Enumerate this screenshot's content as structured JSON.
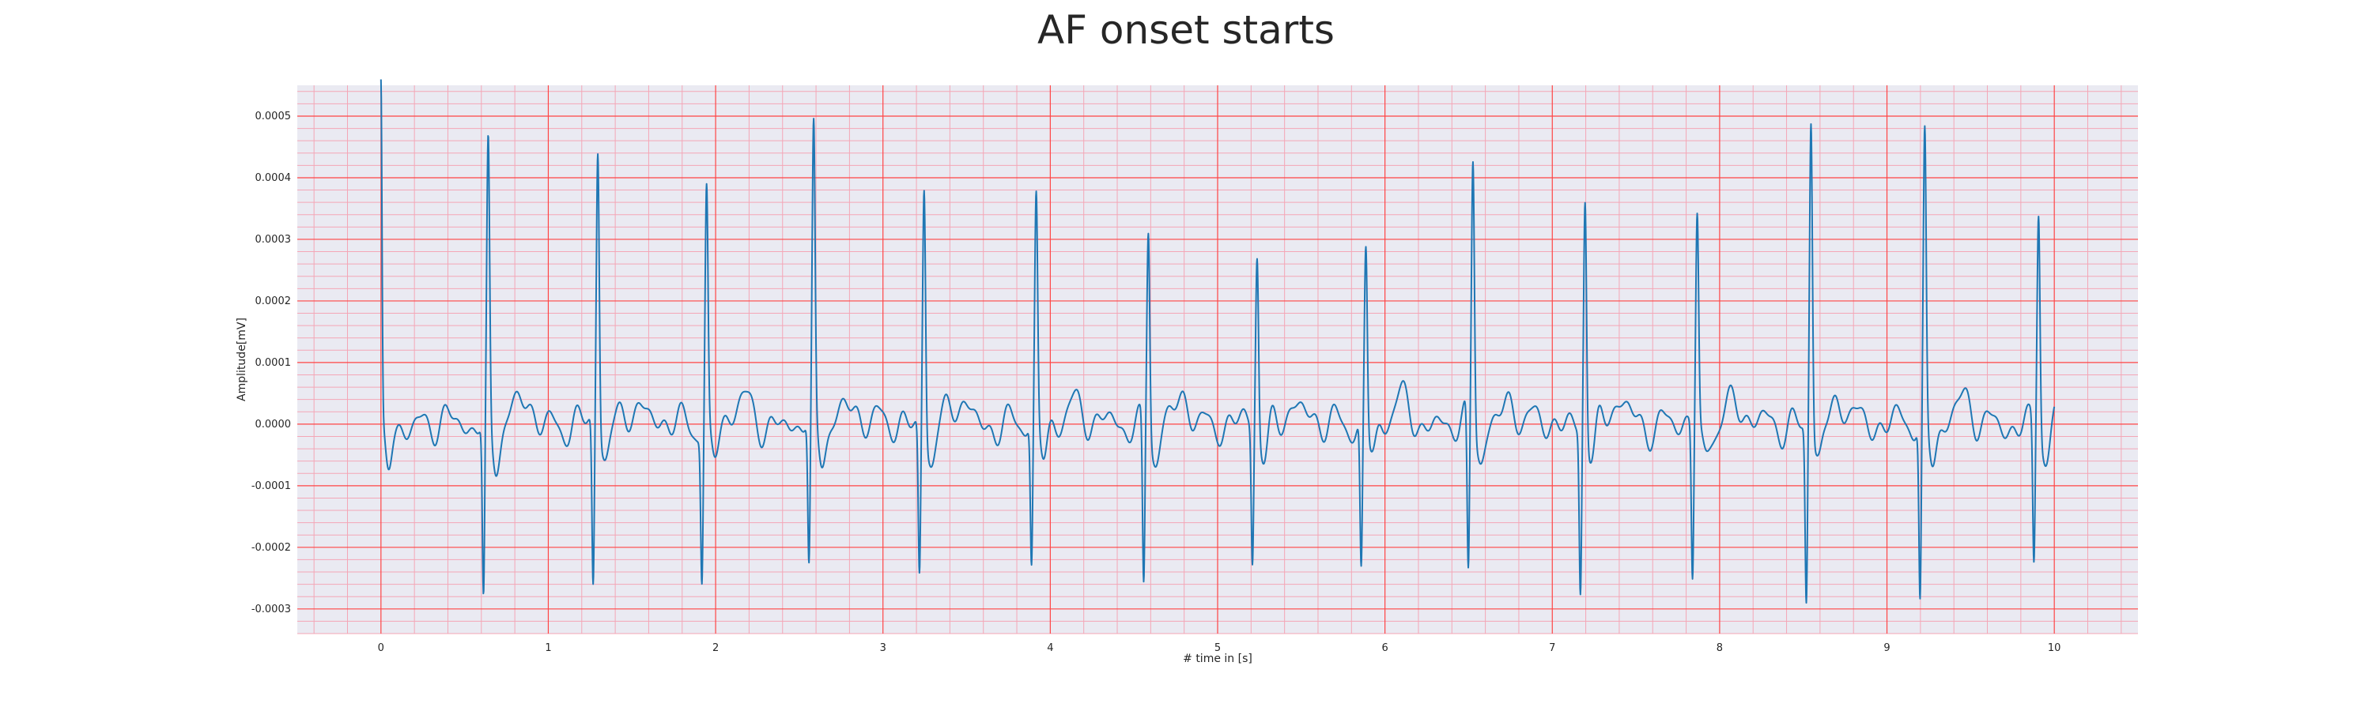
{
  "chart_data": {
    "type": "line",
    "title": "AF onset starts",
    "xlabel": "# time in [s]",
    "ylabel": "Amplitude[mV]",
    "xlim": [
      -0.5,
      10.5
    ],
    "ylim": [
      -0.00034,
      0.00055
    ],
    "x_ticks": [
      0,
      1,
      2,
      3,
      4,
      5,
      6,
      7,
      8,
      9,
      10
    ],
    "x_tick_labels": [
      "0",
      "1",
      "2",
      "3",
      "4",
      "5",
      "6",
      "7",
      "8",
      "9",
      "10"
    ],
    "y_ticks": [
      -0.0003,
      -0.0002,
      -0.0001,
      0.0,
      0.0001,
      0.0002,
      0.0003,
      0.0004,
      0.0005
    ],
    "y_tick_labels": [
      "-0.0003",
      "-0.0002",
      "-0.0001",
      "0.0000",
      "0.0001",
      "0.0002",
      "0.0003",
      "0.0004",
      "0.0005"
    ],
    "grid": true,
    "plot_background": "#eaeaf2",
    "major_grid_color": "#ff4444",
    "minor_grid_color": "#f4a6b6",
    "series": [
      {
        "color": "#1f77b4",
        "x_start": 0.0,
        "x_end": 10.0,
        "initial_value": 0.00048,
        "beats": [
          {
            "t": 0.635,
            "r": 0.00045,
            "s": -0.00029
          },
          {
            "t": 1.29,
            "r": 0.000455,
            "s": -0.00027
          },
          {
            "t": 1.94,
            "r": 0.000385,
            "s": -0.00024
          },
          {
            "t": 2.58,
            "r": 0.00046,
            "s": -0.000245
          },
          {
            "t": 3.24,
            "r": 0.000405,
            "s": -0.000245
          },
          {
            "t": 3.91,
            "r": 0.00036,
            "s": -0.00024
          },
          {
            "t": 4.58,
            "r": 0.000335,
            "s": -0.00027
          },
          {
            "t": 5.23,
            "r": 0.000288,
            "s": -0.00022
          },
          {
            "t": 5.88,
            "r": 0.000298,
            "s": -0.00024
          },
          {
            "t": 6.52,
            "r": 0.00043,
            "s": -0.00027
          },
          {
            "t": 7.19,
            "r": 0.000392,
            "s": -0.00026
          },
          {
            "t": 7.86,
            "r": 0.000342,
            "s": -0.00025
          },
          {
            "t": 8.54,
            "r": 0.00051,
            "s": -0.000285
          },
          {
            "t": 9.22,
            "r": 0.00046,
            "s": -0.000295
          },
          {
            "t": 9.9,
            "r": 0.00036,
            "s": -0.00023
          }
        ]
      }
    ]
  }
}
